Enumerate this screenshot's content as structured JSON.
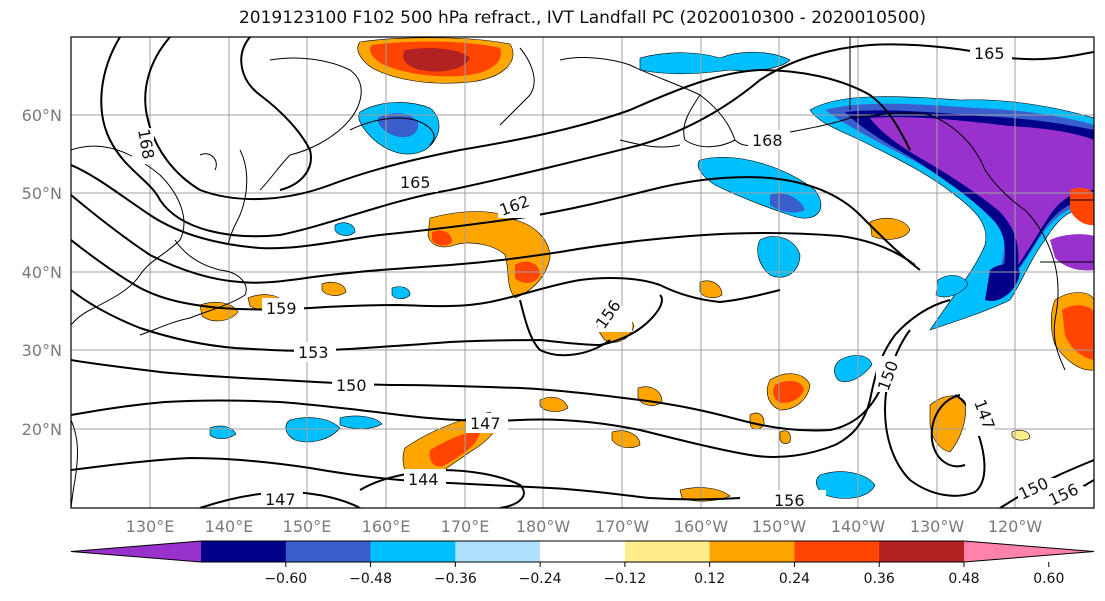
{
  "title": "2019123100 F102 500 hPa refract., IVT Landfall PC (2020010300 - 2020010500)",
  "lat_labels": [
    "60°N",
    "50°N",
    "40°N",
    "30°N",
    "20°N"
  ],
  "lon_labels": [
    "130°E",
    "140°E",
    "150°E",
    "160°E",
    "170°E",
    "180°W",
    "170°W",
    "160°W",
    "150°W",
    "140°W",
    "130°W",
    "120°W"
  ],
  "contour_labels": [
    "165",
    "168",
    "165",
    "168",
    "162",
    "159",
    "156",
    "153",
    "150",
    "147",
    "144",
    "147",
    "150",
    "147",
    "156",
    "150",
    "156"
  ],
  "colorbar": {
    "colors": [
      "#9932cc",
      "#00008b",
      "#3a5fcd",
      "#00bfff",
      "#b0e2ff",
      "#ffffff",
      "#ffec8b",
      "#ffa500",
      "#ff4500",
      "#b22222",
      "#ff82ab"
    ],
    "tick_labels": [
      "−0.60",
      "−0.48",
      "−0.36",
      "−0.24",
      "−0.12",
      "0.12",
      "0.24",
      "0.36",
      "0.48",
      "0.60"
    ]
  }
}
